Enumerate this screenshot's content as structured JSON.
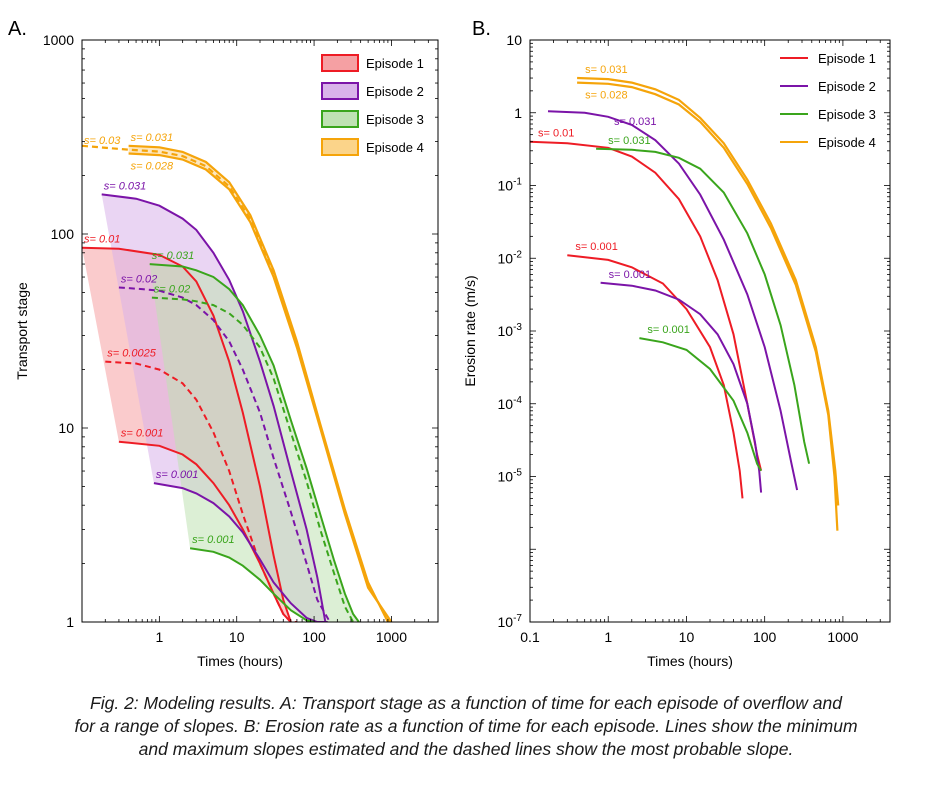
{
  "panels": {
    "a_letter": "A.",
    "b_letter": "B."
  },
  "caption": {
    "line1": "Fig. 2: Modeling results. A: Transport stage as a function of time for each episode of overflow and",
    "line2": "for a range of slopes. B: Erosion rate as a function of time for each episode. Lines show the minimum",
    "line3": "and maximum slopes estimated and the dashed lines show the most probable slope."
  },
  "chart_data": [
    {
      "type": "line",
      "panel": "A",
      "xlabel": "Times (hours)",
      "ylabel": "Transport stage",
      "xscale": "log",
      "yscale": "log",
      "xlim": [
        0.1,
        4000
      ],
      "ylim": [
        1,
        1000
      ],
      "xticks": [
        1,
        10,
        100,
        1000
      ],
      "xtick_labels": [
        "1",
        "10",
        "100",
        "1000"
      ],
      "yticks": [
        1,
        10,
        100,
        1000
      ],
      "ytick_labels": [
        "1",
        "10",
        "100",
        "1000"
      ],
      "legend_position": "top-right",
      "legend": [
        "Episode 1",
        "Episode 2",
        "Episode 3",
        "Episode 4"
      ],
      "colors": {
        "Episode 1": "#ee1c25",
        "Episode 2": "#7b14a8",
        "Episode 3": "#3aa51c",
        "Episode 4": "#f5a40a"
      },
      "fill_colors": {
        "Episode 1": "#f5a0a3",
        "Episode 2": "#d9b3ea",
        "Episode 3": "#bfe2b3",
        "Episode 4": "#fbd48a"
      },
      "series": [
        {
          "episode": "Episode 1",
          "label": "s= 0.01",
          "style": "solid",
          "x": [
            0.1,
            0.3,
            1,
            2,
            3,
            5,
            8,
            12,
            20,
            30,
            40,
            50
          ],
          "y": [
            85,
            84,
            78,
            68,
            57,
            38,
            22,
            12,
            5,
            2.2,
            1.3,
            1
          ]
        },
        {
          "episode": "Episode 1",
          "label": "s= 0.0025",
          "style": "dashed",
          "x": [
            0.2,
            0.5,
            1,
            2,
            3,
            5,
            8,
            12,
            20,
            30,
            40,
            50,
            60
          ],
          "y": [
            22,
            21.5,
            20,
            17,
            14,
            9.5,
            6,
            3.6,
            2,
            1.4,
            1.1,
            1,
            1
          ]
        },
        {
          "episode": "Episode 1",
          "label": "s= 0.001",
          "style": "solid",
          "x": [
            0.3,
            1,
            2,
            3,
            5,
            8,
            12,
            20,
            30,
            40,
            50
          ],
          "y": [
            8.5,
            8.1,
            7.3,
            6.5,
            5.2,
            4,
            3,
            2,
            1.4,
            1.1,
            1
          ]
        },
        {
          "episode": "Episode 2",
          "label": "s= 0.031",
          "style": "solid",
          "x": [
            0.18,
            0.5,
            1,
            2,
            3,
            5,
            8,
            12,
            20,
            30,
            50,
            80,
            110,
            140
          ],
          "y": [
            160,
            152,
            140,
            120,
            105,
            80,
            58,
            40,
            22,
            13,
            6,
            3,
            1.7,
            1
          ]
        },
        {
          "episode": "Episode 2",
          "label": "s= 0.02",
          "style": "dashed",
          "x": [
            0.3,
            0.6,
            1,
            2,
            3,
            5,
            8,
            12,
            20,
            30,
            50,
            80,
            110,
            160
          ],
          "y": [
            53,
            52,
            51,
            47,
            43,
            36,
            28,
            20,
            12,
            7,
            3.7,
            2,
            1.3,
            1
          ]
        },
        {
          "episode": "Episode 2",
          "label": "s= 0.001",
          "style": "solid",
          "x": [
            0.85,
            2,
            3,
            5,
            8,
            12,
            20,
            30,
            50,
            80,
            110,
            150
          ],
          "y": [
            5.2,
            4.9,
            4.6,
            4.1,
            3.5,
            2.9,
            2.1,
            1.6,
            1.25,
            1.05,
            1,
            1
          ]
        },
        {
          "episode": "Episode 3",
          "label": "s= 0.031",
          "style": "solid",
          "x": [
            0.75,
            2,
            3,
            5,
            8,
            12,
            20,
            30,
            50,
            80,
            120,
            180,
            250,
            320,
            380
          ],
          "y": [
            70,
            68,
            65,
            60,
            52,
            43,
            30,
            21,
            11,
            6.2,
            3.6,
            2.1,
            1.4,
            1.1,
            1
          ]
        },
        {
          "episode": "Episode 3",
          "label": "s= 0.02",
          "style": "dashed",
          "x": [
            0.8,
            2,
            3,
            5,
            8,
            12,
            20,
            30,
            50,
            80,
            120,
            180,
            250,
            320
          ],
          "y": [
            47,
            46,
            45,
            43,
            39,
            34,
            26,
            18,
            9.5,
            5.3,
            3,
            1.8,
            1.2,
            1
          ]
        },
        {
          "episode": "Episode 3",
          "label": "s= 0.001",
          "style": "solid",
          "x": [
            2.5,
            5,
            8,
            12,
            20,
            30,
            50,
            80,
            100
          ],
          "y": [
            2.4,
            2.3,
            2.15,
            1.95,
            1.65,
            1.4,
            1.15,
            1.02,
            1
          ]
        },
        {
          "episode": "Episode 4",
          "label": "s= 0.031",
          "style": "solid",
          "x": [
            0.4,
            1,
            2,
            4,
            8,
            15,
            30,
            60,
            120,
            250,
            500,
            900
          ],
          "y": [
            285,
            280,
            265,
            235,
            185,
            125,
            65,
            28,
            10.5,
            3.8,
            1.6,
            1
          ]
        },
        {
          "episode": "Episode 4",
          "label": "s= 0.03",
          "style": "dashed",
          "x": [
            0.1,
            0.4,
            1,
            2,
            4,
            8,
            15,
            30,
            60,
            120,
            250,
            500,
            950
          ],
          "y": [
            285,
            272,
            266,
            252,
            224,
            176,
            119,
            62,
            27,
            10.2,
            3.7,
            1.55,
            1
          ]
        },
        {
          "episode": "Episode 4",
          "label": "s= 0.028",
          "style": "solid",
          "x": [
            0.4,
            1,
            2,
            4,
            8,
            15,
            30,
            60,
            120,
            250,
            500,
            1000
          ],
          "y": [
            260,
            255,
            242,
            215,
            170,
            115,
            60,
            26,
            10,
            3.6,
            1.5,
            1
          ]
        }
      ]
    },
    {
      "type": "line",
      "panel": "B",
      "xlabel": "Times (hours)",
      "ylabel": "Erosion rate (m/s)",
      "xscale": "log",
      "yscale": "log",
      "xlim": [
        0.1,
        4000
      ],
      "ylim": [
        1e-07,
        10
      ],
      "xticks": [
        0.1,
        1,
        10,
        100,
        1000
      ],
      "xtick_labels": [
        "0.1",
        "1",
        "10",
        "100",
        "1000"
      ],
      "ytick_labels": [
        "10",
        "1",
        "10-1",
        "10-2",
        "10-3",
        "10-4",
        "10-5",
        "10-7"
      ],
      "legend_position": "top-right",
      "legend": [
        "Episode 1",
        "Episode 2",
        "Episode 3",
        "Episode 4"
      ],
      "series": [
        {
          "episode": "Episode 1",
          "label": "s= 0.01",
          "x": [
            0.1,
            0.3,
            1,
            2,
            4,
            8,
            15,
            25,
            40,
            60,
            80,
            90
          ],
          "y": [
            0.4,
            0.38,
            0.33,
            0.25,
            0.15,
            0.065,
            0.02,
            0.005,
            0.0009,
            0.0001,
            2e-05,
            1.2e-05
          ]
        },
        {
          "episode": "Episode 1",
          "label": "s= 0.001",
          "x": [
            0.3,
            1,
            2,
            5,
            10,
            20,
            30,
            40,
            48,
            52
          ],
          "y": [
            0.011,
            0.0095,
            0.0075,
            0.0045,
            0.002,
            0.0006,
            0.00018,
            4e-05,
            1.2e-05,
            5e-06
          ]
        },
        {
          "episode": "Episode 2",
          "label": "s= 0.031",
          "x": [
            0.17,
            0.5,
            1,
            2,
            4,
            8,
            15,
            30,
            60,
            100,
            160,
            220,
            260
          ],
          "y": [
            1.05,
            1.0,
            0.88,
            0.68,
            0.42,
            0.2,
            0.075,
            0.018,
            0.0032,
            0.0006,
            8e-05,
            1.5e-05,
            6.5e-06
          ]
        },
        {
          "episode": "Episode 2",
          "label": "s= 0.001",
          "x": [
            0.8,
            2,
            4,
            8,
            15,
            25,
            40,
            60,
            75,
            85,
            90
          ],
          "y": [
            0.0046,
            0.0042,
            0.0036,
            0.0027,
            0.0017,
            0.0009,
            0.00035,
            0.0001,
            3e-05,
            1.2e-05,
            6e-06
          ]
        },
        {
          "episode": "Episode 3",
          "label": "s= 0.031",
          "x": [
            0.7,
            2,
            4,
            8,
            15,
            30,
            60,
            100,
            160,
            240,
            320,
            370
          ],
          "y": [
            0.32,
            0.31,
            0.29,
            0.24,
            0.17,
            0.08,
            0.022,
            0.006,
            0.0012,
            0.00018,
            3e-05,
            1.5e-05
          ]
        },
        {
          "episode": "Episode 3",
          "label": "s= 0.001",
          "x": [
            2.5,
            5,
            10,
            20,
            40,
            60,
            80,
            90
          ],
          "y": [
            0.0008,
            0.0007,
            0.00055,
            0.0003,
            0.00011,
            4e-05,
            1.5e-05,
            1.2e-05
          ]
        },
        {
          "episode": "Episode 4",
          "label": "s= 0.031",
          "x": [
            0.4,
            1,
            2,
            4,
            8,
            15,
            30,
            60,
            120,
            250,
            450,
            650,
            800,
            870
          ],
          "y": [
            3.0,
            2.9,
            2.6,
            2.1,
            1.5,
            0.85,
            0.38,
            0.12,
            0.03,
            0.005,
            0.0006,
            8e-05,
            1.2e-05,
            4e-06
          ]
        },
        {
          "episode": "Episode 4",
          "label": "s= 0.028",
          "x": [
            0.4,
            1,
            2,
            4,
            8,
            15,
            30,
            60,
            120,
            250,
            450,
            650,
            780,
            850
          ],
          "y": [
            2.6,
            2.5,
            2.25,
            1.8,
            1.3,
            0.75,
            0.33,
            0.105,
            0.026,
            0.0043,
            0.00052,
            7e-05,
            1e-05,
            1.8e-06
          ]
        }
      ]
    }
  ]
}
